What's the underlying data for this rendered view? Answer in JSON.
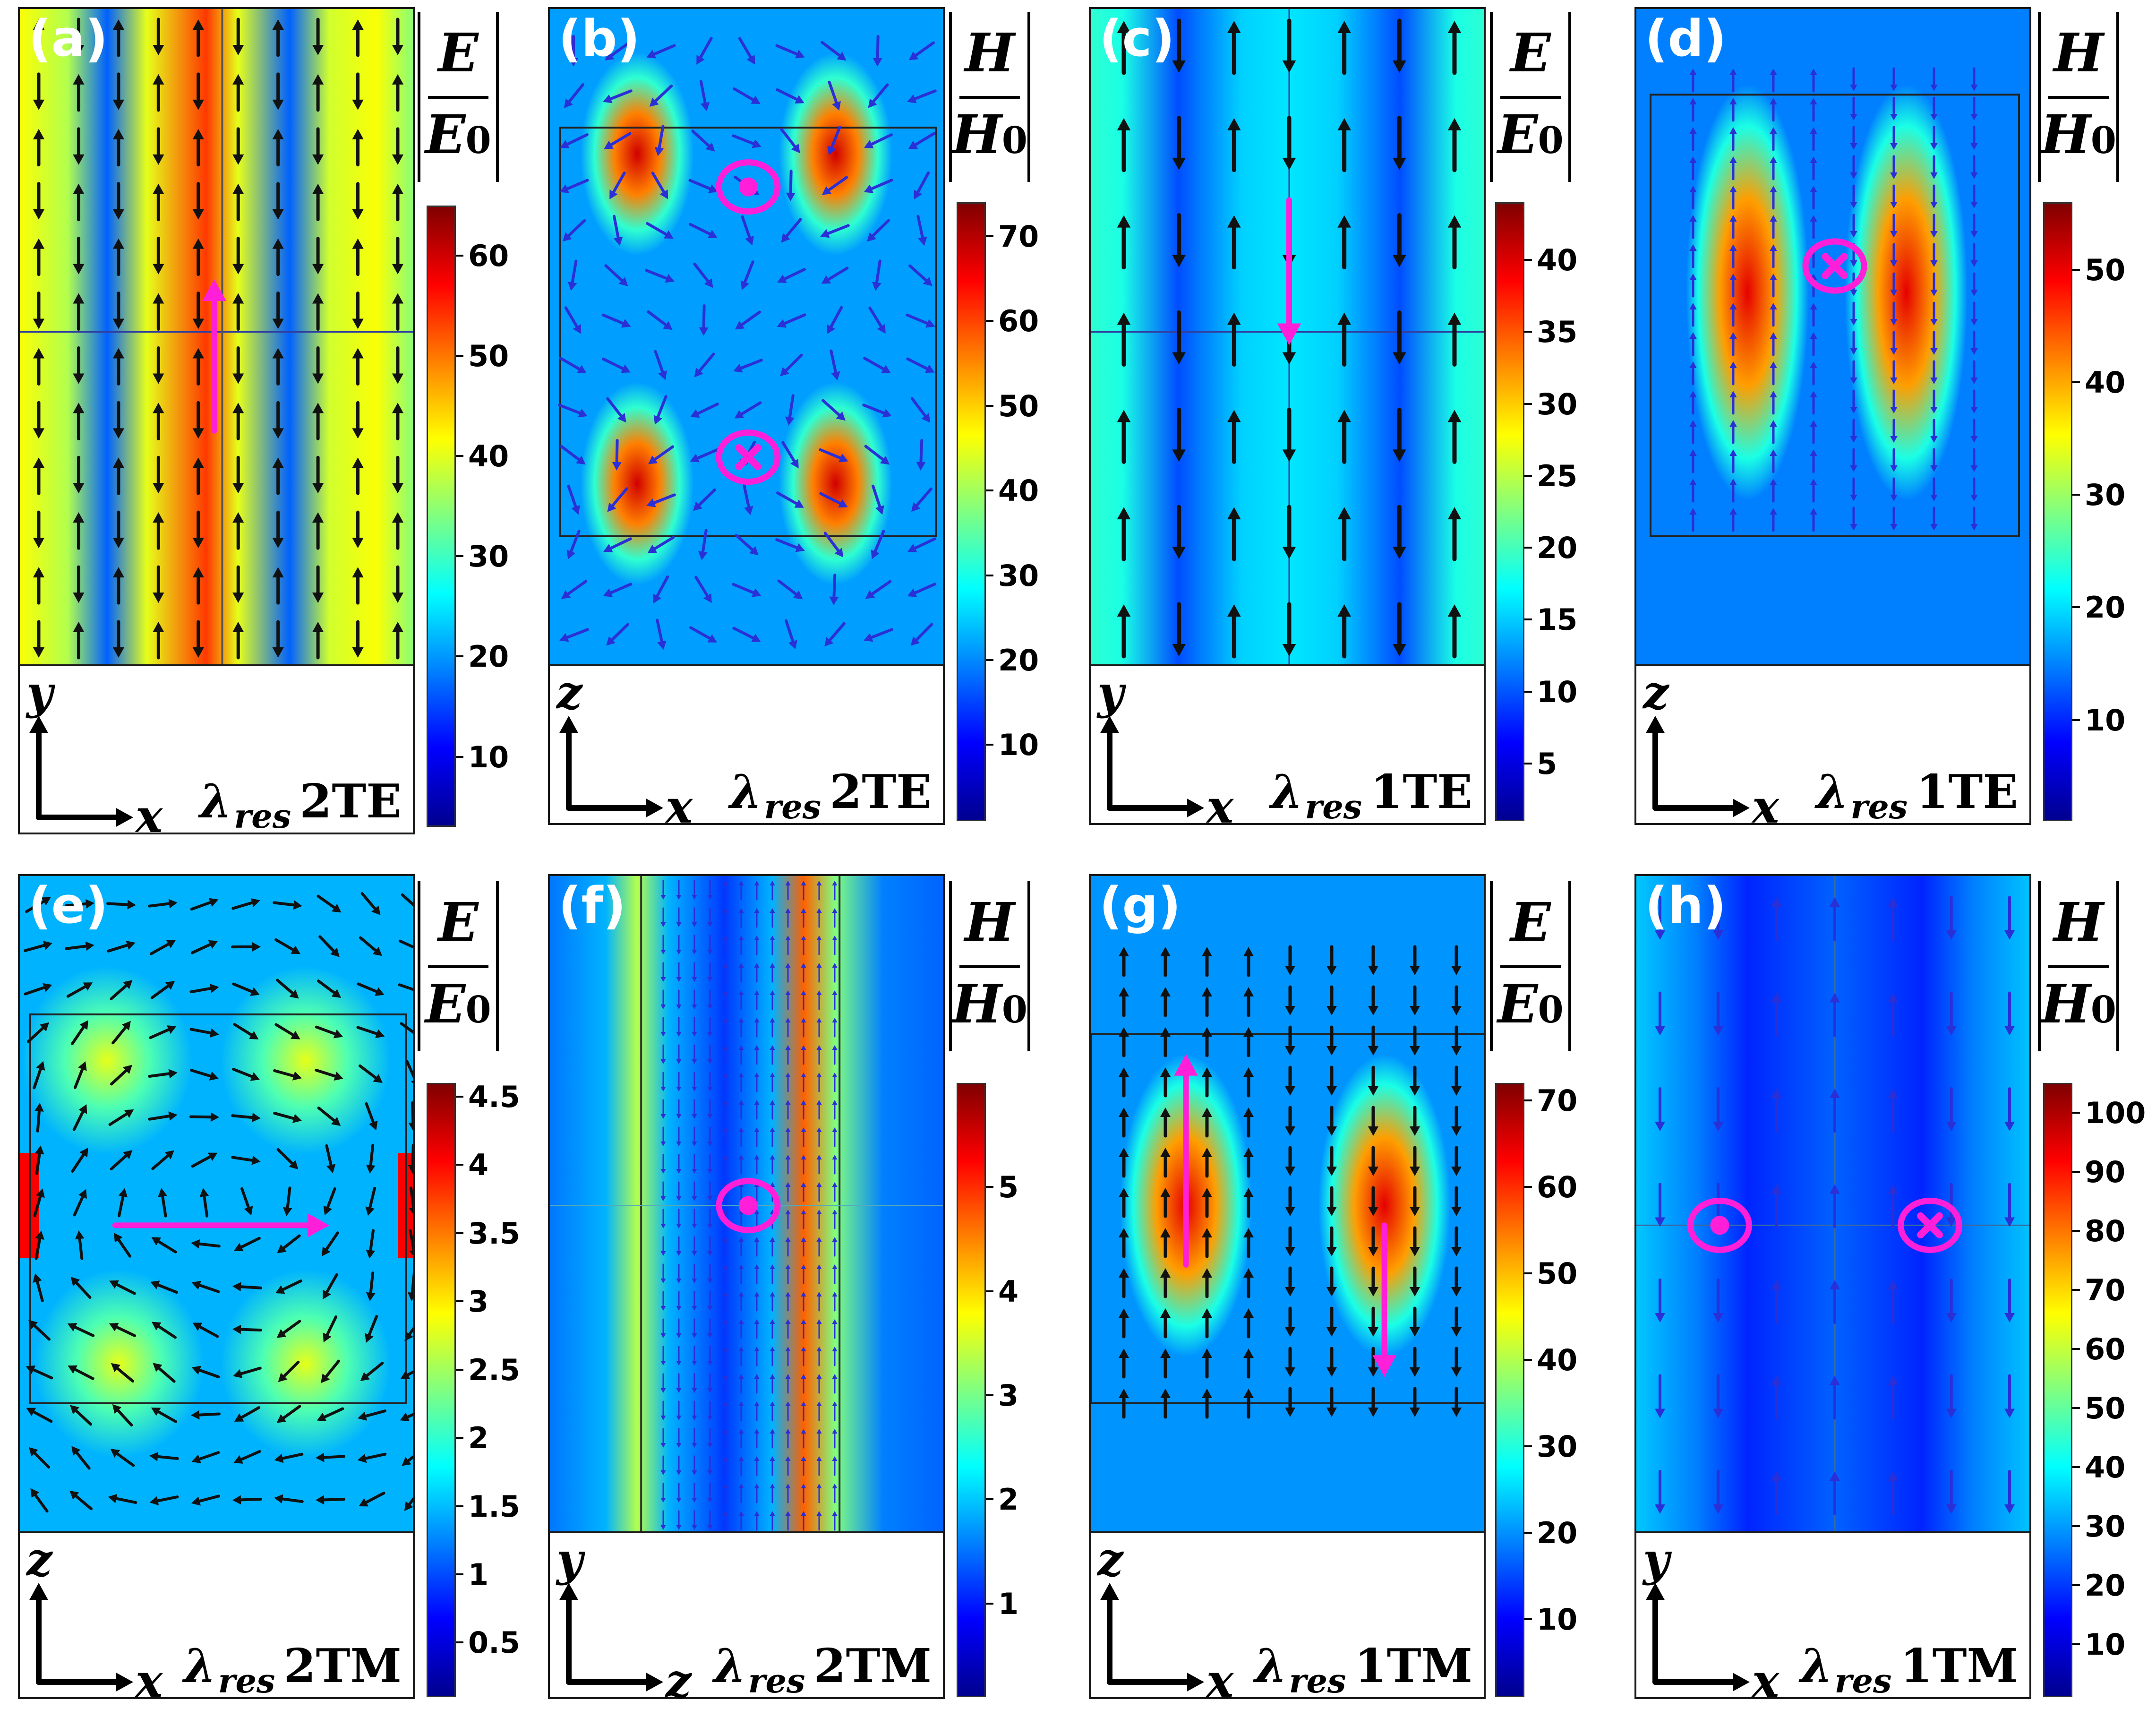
{
  "axis_origin": "",
  "panels": [
    {
      "id": "a",
      "label": "(a)",
      "v_axis": "y",
      "h_axis": "x",
      "mode_sub": "res",
      "mode": "2TE",
      "field": "E",
      "field0": "E",
      "field0_sub": "0",
      "ticks": [
        "10",
        "20",
        "30",
        "40",
        "50",
        "60"
      ],
      "cmin": 3,
      "cmax": 65,
      "tick_values": [
        10,
        20,
        30,
        40,
        50,
        60
      ]
    },
    {
      "id": "b",
      "label": "(b)",
      "v_axis": "z",
      "h_axis": "x",
      "mode_sub": "res",
      "mode": "2TE",
      "field": "H",
      "field0": "H",
      "field0_sub": "0",
      "ticks": [
        "10",
        "20",
        "30",
        "40",
        "50",
        "60",
        "70"
      ],
      "cmin": 1,
      "cmax": 74,
      "tick_values": [
        10,
        20,
        30,
        40,
        50,
        60,
        70
      ]
    },
    {
      "id": "c",
      "label": "(c)",
      "v_axis": "y",
      "h_axis": "x",
      "mode_sub": "res",
      "mode": "1TE",
      "field": "E",
      "field0": "E",
      "field0_sub": "0",
      "ticks": [
        "5",
        "10",
        "15",
        "20",
        "25",
        "30",
        "35",
        "40"
      ],
      "cmin": 1,
      "cmax": 44,
      "tick_values": [
        5,
        10,
        15,
        20,
        25,
        30,
        35,
        40
      ]
    },
    {
      "id": "d",
      "label": "(d)",
      "v_axis": "z",
      "h_axis": "x",
      "mode_sub": "res",
      "mode": "1TE",
      "field": "H",
      "field0": "H",
      "field0_sub": "0",
      "ticks": [
        "10",
        "20",
        "30",
        "40",
        "50"
      ],
      "cmin": 1,
      "cmax": 56,
      "tick_values": [
        10,
        20,
        30,
        40,
        50
      ]
    },
    {
      "id": "e",
      "label": "(e)",
      "v_axis": "z",
      "h_axis": "x",
      "mode_sub": "res",
      "mode": "2TM",
      "field": "E",
      "field0": "E",
      "field0_sub": "0",
      "ticks": [
        "0.5",
        "1",
        "1.5",
        "2",
        "2.5",
        "3",
        "3.5",
        "4",
        "4.5"
      ],
      "cmin": 0.1,
      "cmax": 4.6,
      "tick_values": [
        0.5,
        1,
        1.5,
        2,
        2.5,
        3,
        3.5,
        4,
        4.5
      ]
    },
    {
      "id": "f",
      "label": "(f)",
      "v_axis": "y",
      "h_axis": "z",
      "mode_sub": "res",
      "mode": "2TM",
      "field": "H",
      "field0": "H",
      "field0_sub": "0",
      "ticks": [
        "1",
        "2",
        "3",
        "4",
        "5"
      ],
      "cmin": 0.1,
      "cmax": 6,
      "tick_values": [
        1,
        2,
        3,
        4,
        5
      ]
    },
    {
      "id": "g",
      "label": "(g)",
      "v_axis": "z",
      "h_axis": "x",
      "mode_sub": "res",
      "mode": "1TM",
      "field": "E",
      "field0": "E",
      "field0_sub": "0",
      "ticks": [
        "10",
        "20",
        "30",
        "40",
        "50",
        "60",
        "70"
      ],
      "cmin": 1,
      "cmax": 72,
      "tick_values": [
        10,
        20,
        30,
        40,
        50,
        60,
        70
      ]
    },
    {
      "id": "h",
      "label": "(h)",
      "v_axis": "y",
      "h_axis": "x",
      "mode_sub": "res",
      "mode": "1TM",
      "field": "H",
      "field0": "H",
      "field0_sub": "0",
      "ticks": [
        "10",
        "20",
        "30",
        "40",
        "50",
        "60",
        "70",
        "80",
        "90",
        "100"
      ],
      "cmin": 1,
      "cmax": 105,
      "tick_values": [
        10,
        20,
        30,
        40,
        50,
        60,
        70,
        80,
        90,
        100
      ]
    }
  ],
  "colors": {
    "jet": [
      "#00008f",
      "#0000ff",
      "#0080ff",
      "#00ffff",
      "#80ff80",
      "#ffff00",
      "#ff8000",
      "#ff0000",
      "#800000"
    ],
    "marker": "#ff1fd9",
    "arrow_black": "#111111",
    "arrow_blue": "#2a2fd6",
    "field_bg": "#2aa7ee"
  },
  "icons": {
    "dot_in_circle": "out-of-plane-out-icon",
    "x_in_circle": "out-of-plane-in-icon"
  }
}
